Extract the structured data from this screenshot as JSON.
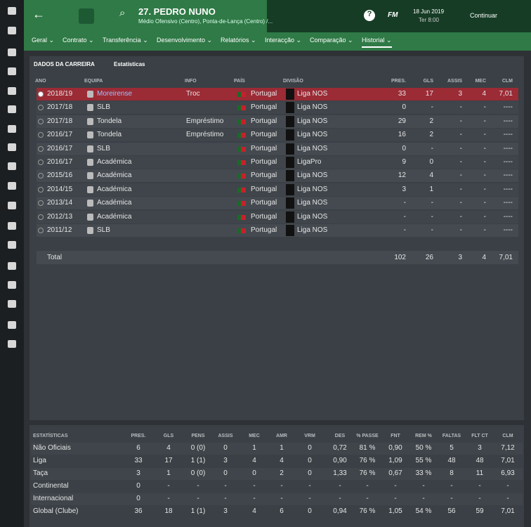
{
  "header": {
    "title": "27. PEDRO NUNO",
    "subtitle": "Médio Ofensivo (Centro), Ponta-de-Lança (Centro) /...",
    "brand": "FM",
    "date": "18 Jun 2019",
    "time": "Ter 8:00",
    "continue": "Continuar"
  },
  "tabs": [
    "Geral",
    "Contrato",
    "Transferência",
    "Desenvolvimento",
    "Relatórios",
    "Interacção",
    "Comparação",
    "Historial"
  ],
  "career": {
    "title": "DADOS DA CARREIRA",
    "view": "Estatísticas",
    "columns": [
      "ANO",
      "EQUIPA",
      "INFO",
      "PAÍS",
      "DIVISÃO",
      "PRES.",
      "GLS",
      "ASSIS",
      "MEC",
      "CLM"
    ],
    "rows": [
      {
        "year": "2018/19",
        "team": "Moreirense",
        "info": "Troc",
        "country": "Portugal",
        "division": "Liga NOS",
        "stats": [
          "33",
          "17",
          "3",
          "4",
          "7,01"
        ]
      },
      {
        "year": "2017/18",
        "team": "SLB",
        "country": "Portugal",
        "division": "Liga NOS",
        "stats": [
          "0",
          "-",
          "-",
          "-",
          "----"
        ]
      },
      {
        "year": "2017/18",
        "team": "Tondela",
        "info": "Empréstimo",
        "country": "Portugal",
        "division": "Liga NOS",
        "stats": [
          "29",
          "2",
          "-",
          "-",
          "----"
        ]
      },
      {
        "year": "2016/17",
        "team": "Tondela",
        "info": "Empréstimo",
        "country": "Portugal",
        "division": "Liga NOS",
        "stats": [
          "16",
          "2",
          "-",
          "-",
          "----"
        ]
      },
      {
        "year": "2016/17",
        "team": "SLB",
        "country": "Portugal",
        "division": "Liga NOS",
        "stats": [
          "0",
          "-",
          "-",
          "-",
          "----"
        ]
      },
      {
        "year": "2016/17",
        "team": "Académica",
        "country": "Portugal",
        "division": "LigaPro",
        "stats": [
          "9",
          "0",
          "-",
          "-",
          "----"
        ]
      },
      {
        "year": "2015/16",
        "team": "Académica",
        "country": "Portugal",
        "division": "Liga NOS",
        "stats": [
          "12",
          "4",
          "-",
          "-",
          "----"
        ]
      },
      {
        "year": "2014/15",
        "team": "Académica",
        "country": "Portugal",
        "division": "Liga NOS",
        "stats": [
          "3",
          "1",
          "-",
          "-",
          "----"
        ]
      },
      {
        "year": "2013/14",
        "team": "Académica",
        "country": "Portugal",
        "division": "Liga NOS",
        "stats": [
          "-",
          "-",
          "-",
          "-",
          "----"
        ]
      },
      {
        "year": "2012/13",
        "team": "Académica",
        "country": "Portugal",
        "division": "Liga NOS",
        "stats": [
          "-",
          "-",
          "-",
          "-",
          "----"
        ]
      },
      {
        "year": "2011/12",
        "team": "SLB",
        "country": "Portugal",
        "division": "Liga NOS",
        "stats": [
          "-",
          "-",
          "-",
          "-",
          "----"
        ]
      }
    ],
    "total": {
      "label": "Total",
      "stats": [
        "102",
        "26",
        "3",
        "4",
        "7,01"
      ]
    }
  },
  "stats": {
    "columns": [
      "ESTATÍSTICAS",
      "PRES.",
      "GLS",
      "PENS",
      "ASSIS",
      "MEC",
      "AMR",
      "VRM",
      "DES",
      "% PASSE",
      "FNT",
      "REM %",
      "FALTAS",
      "FLT CT",
      "CLM"
    ],
    "rows": [
      [
        "Não Oficiais",
        "6",
        "4",
        "0 (0)",
        "0",
        "1",
        "1",
        "0",
        "0,72",
        "81 %",
        "0,90",
        "50 %",
        "5",
        "3",
        "7,12"
      ],
      [
        "Liga",
        "33",
        "17",
        "1 (1)",
        "3",
        "4",
        "4",
        "0",
        "0,90",
        "76 %",
        "1,09",
        "55 %",
        "48",
        "48",
        "7,01"
      ],
      [
        "Taça",
        "3",
        "1",
        "0 (0)",
        "0",
        "0",
        "2",
        "0",
        "1,33",
        "76 %",
        "0,67",
        "33 %",
        "8",
        "11",
        "6,93"
      ],
      [
        "Continental",
        "0",
        "-",
        "-",
        "-",
        "-",
        "-",
        "-",
        "-",
        "-",
        "-",
        "-",
        "-",
        "-",
        "-"
      ],
      [
        "Internacional",
        "0",
        "-",
        "-",
        "-",
        "-",
        "-",
        "-",
        "-",
        "-",
        "-",
        "-",
        "-",
        "-",
        "-"
      ],
      [
        "Global (Clube)",
        "36",
        "18",
        "1 (1)",
        "3",
        "4",
        "6",
        "0",
        "0,94",
        "76 %",
        "1,05",
        "54 %",
        "56",
        "59",
        "7,01"
      ]
    ]
  }
}
